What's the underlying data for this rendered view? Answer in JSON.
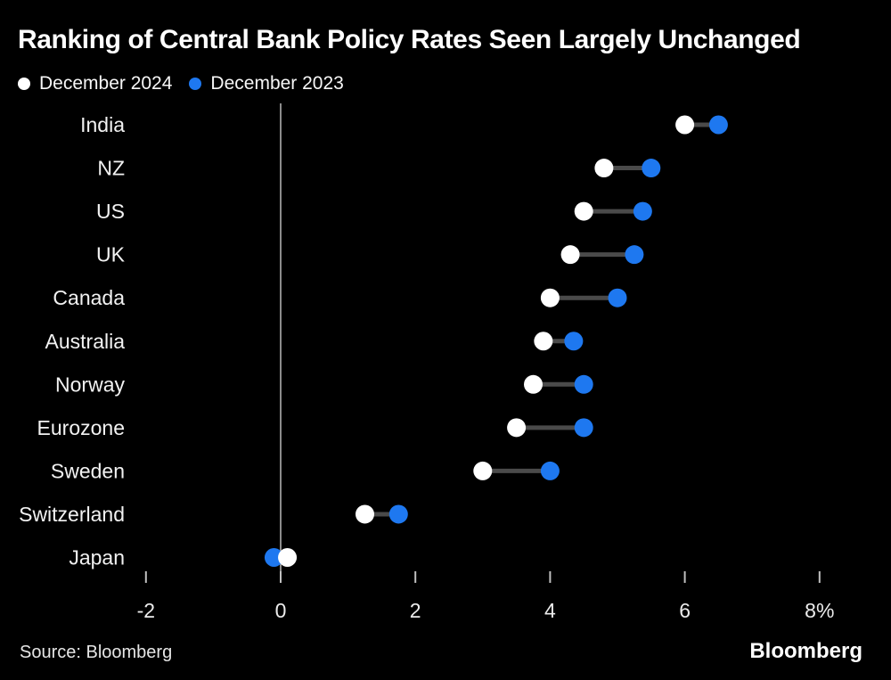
{
  "title": "Ranking of Central Bank Policy Rates Seen Largely Unchanged",
  "legend": [
    {
      "label": "December 2024",
      "color": "#ffffff"
    },
    {
      "label": "December 2023",
      "color": "#1e78f0"
    }
  ],
  "source": "Source: Bloomberg",
  "logo": "Bloomberg",
  "colors": {
    "background": "#000000",
    "title_text": "#ffffff",
    "label_text": "#f2f2f2",
    "tick_label_text": "#ececec",
    "dot_white": "#ffffff",
    "dot_blue": "#1e78f0",
    "connector": "#4a4a4a",
    "zero_line": "#8c8c8c",
    "tick_mark": "#c0c0c0"
  },
  "chart_data": {
    "type": "scatter",
    "subtype": "dumbbell-dot-plot",
    "title": "Ranking of Central Bank Policy Rates Seen Largely Unchanged",
    "categories": [
      "India",
      "NZ",
      "US",
      "UK",
      "Canada",
      "Australia",
      "Norway",
      "Eurozone",
      "Sweden",
      "Switzerland",
      "Japan"
    ],
    "series": [
      {
        "name": "December 2024",
        "color": "#ffffff",
        "values": [
          6.0,
          4.8,
          4.5,
          4.3,
          4.0,
          3.9,
          3.75,
          3.5,
          3.0,
          1.25,
          0.1
        ]
      },
      {
        "name": "December 2023",
        "color": "#1e78f0",
        "values": [
          6.5,
          5.5,
          5.375,
          5.25,
          5.0,
          4.35,
          4.5,
          4.5,
          4.0,
          1.75,
          -0.1
        ]
      }
    ],
    "xlabel": "",
    "ylabel": "",
    "x_ticks": [
      {
        "value": -2,
        "label": "-2"
      },
      {
        "value": 0,
        "label": "0"
      },
      {
        "value": 2,
        "label": "2"
      },
      {
        "value": 4,
        "label": "4"
      },
      {
        "value": 6,
        "label": "6"
      },
      {
        "value": 8,
        "label": "8%"
      }
    ],
    "xlim": [
      -2.6,
      8.9
    ],
    "grid": "zero-line-only",
    "legend_position": "top-left",
    "source": "Source: Bloomberg"
  }
}
